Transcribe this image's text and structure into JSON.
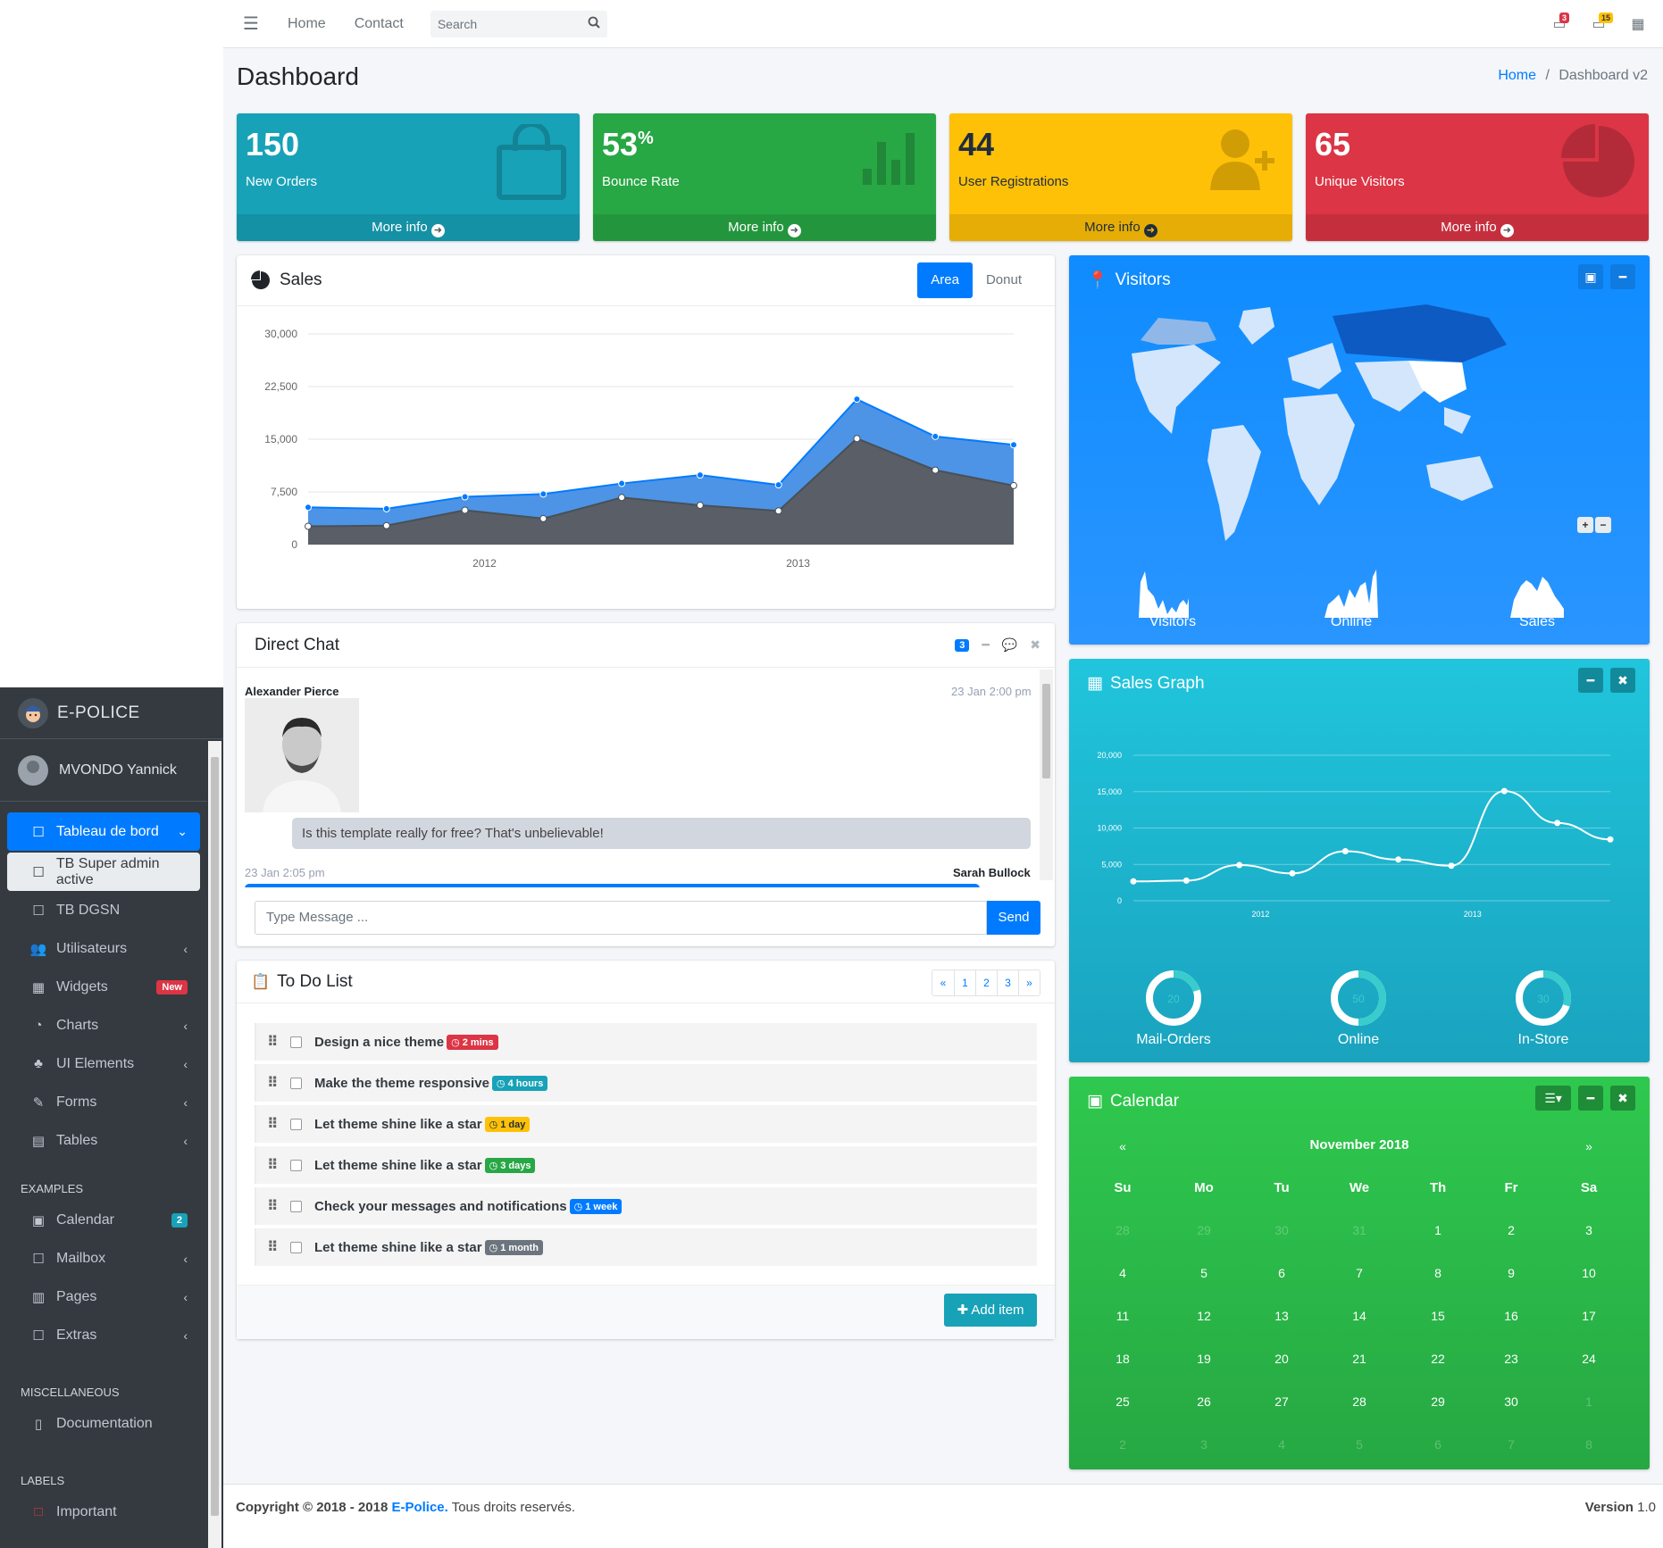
{
  "brand": {
    "name": "E-POLICE"
  },
  "user": {
    "name": "MVONDO Yannick"
  },
  "sidebar": {
    "items": [
      {
        "label": "Tableau de bord"
      },
      {
        "label": "TB Super admin active"
      },
      {
        "label": "TB DGSN"
      },
      {
        "label": "Utilisateurs"
      },
      {
        "label": "Widgets",
        "badge": "New"
      },
      {
        "label": "Charts"
      },
      {
        "label": "UI Elements"
      },
      {
        "label": "Forms"
      },
      {
        "label": "Tables"
      }
    ],
    "examples_header": "EXAMPLES",
    "examples": [
      {
        "label": "Calendar",
        "badge": "2"
      },
      {
        "label": "Mailbox"
      },
      {
        "label": "Pages"
      },
      {
        "label": "Extras"
      }
    ],
    "misc_header": "MISCELLANEOUS",
    "misc": [
      {
        "label": "Documentation"
      }
    ],
    "labels_header": "LABELS",
    "labels": [
      {
        "label": "Important"
      }
    ]
  },
  "topbar": {
    "home": "Home",
    "contact": "Contact",
    "search_placeholder": "Search",
    "messages_count": "3",
    "notifications_count": "15"
  },
  "page": {
    "title": "Dashboard",
    "breadcrumb_home": "Home",
    "breadcrumb_current": "Dashboard v2"
  },
  "small_boxes": [
    {
      "value": "150",
      "suffix": "",
      "label": "New Orders",
      "more": "More info",
      "color": "#17a2b8"
    },
    {
      "value": "53",
      "suffix": "%",
      "label": "Bounce Rate",
      "more": "More info",
      "color": "#28a745"
    },
    {
      "value": "44",
      "suffix": "",
      "label": "User Registrations",
      "more": "More info",
      "color": "#ffc107"
    },
    {
      "value": "65",
      "suffix": "",
      "label": "Unique Visitors",
      "more": "More info",
      "color": "#dc3545"
    }
  ],
  "sales": {
    "title": "Sales",
    "tab_area": "Area",
    "tab_donut": "Donut"
  },
  "chart_data": [
    {
      "type": "area",
      "x_ticks": [
        "2012",
        "2013"
      ],
      "y_ticks": [
        "0",
        "7,500",
        "15,000",
        "22,500",
        "30,000"
      ],
      "ylim": [
        0,
        30000
      ],
      "series": [
        {
          "values": [
            5300,
            5100,
            6800,
            7200,
            8700,
            9900,
            8500,
            20700,
            15400,
            14200
          ]
        },
        {
          "values": [
            2600,
            2700,
            4900,
            3700,
            6700,
            5600,
            4800,
            15100,
            10600,
            8400
          ]
        }
      ]
    },
    {
      "type": "line",
      "x_ticks": [
        "2012",
        "2013"
      ],
      "y_ticks": [
        "0",
        "5,000",
        "10,000",
        "15,000",
        "20,000"
      ],
      "ylim": [
        0,
        20000
      ],
      "series": [
        {
          "values": [
            2666,
            2778,
            4912,
            3767,
            6810,
            5670,
            4820,
            15073,
            10687,
            8432
          ]
        }
      ]
    }
  ],
  "chat": {
    "title": "Direct Chat",
    "badge": "3",
    "msg1_name": "Alexander Pierce",
    "msg1_time": "23 Jan 2:00 pm",
    "msg1_text": "Is this template really for free? That's unbelievable!",
    "msg2_name": "Sarah Bullock",
    "msg2_time": "23 Jan 2:05 pm",
    "input_placeholder": "Type Message ...",
    "send": "Send"
  },
  "todo": {
    "title": "To Do List",
    "pages": [
      "«",
      "1",
      "2",
      "3",
      "»"
    ],
    "items": [
      {
        "text": "Design a nice theme",
        "badge": "2 mins",
        "color": "#dc3545"
      },
      {
        "text": "Make the theme responsive",
        "badge": "4 hours",
        "color": "#17a2b8"
      },
      {
        "text": "Let theme shine like a star",
        "badge": "1 day",
        "color": "#ffc107"
      },
      {
        "text": "Let theme shine like a star",
        "badge": "3 days",
        "color": "#28a745"
      },
      {
        "text": "Check your messages and notifications",
        "badge": "1 week",
        "color": "#007bff"
      },
      {
        "text": "Let theme shine like a star",
        "badge": "1 month",
        "color": "#6c757d"
      }
    ],
    "add": "Add item"
  },
  "visitors": {
    "title": "Visitors",
    "spark": [
      "Visitors",
      "Online",
      "Sales"
    ]
  },
  "sales_graph": {
    "title": "Sales Graph",
    "knobs": [
      {
        "label": "Mail-Orders",
        "value": "20"
      },
      {
        "label": "Online",
        "value": "50"
      },
      {
        "label": "In-Store",
        "value": "30"
      }
    ]
  },
  "calendar": {
    "title": "Calendar",
    "month": "November 2018",
    "prev": "«",
    "next": "»",
    "days": [
      "Su",
      "Mo",
      "Tu",
      "We",
      "Th",
      "Fr",
      "Sa"
    ],
    "weeks": [
      [
        "28",
        "29",
        "30",
        "31",
        "1",
        "2",
        "3"
      ],
      [
        "4",
        "5",
        "6",
        "7",
        "8",
        "9",
        "10"
      ],
      [
        "11",
        "12",
        "13",
        "14",
        "15",
        "16",
        "17"
      ],
      [
        "18",
        "19",
        "20",
        "21",
        "22",
        "23",
        "24"
      ],
      [
        "25",
        "26",
        "27",
        "28",
        "29",
        "30",
        "1"
      ],
      [
        "2",
        "3",
        "4",
        "5",
        "6",
        "7",
        "8"
      ]
    ]
  },
  "footer": {
    "copy": "Copyright © 2018 - 2018",
    "brand": "E-Police.",
    "rights": "Tous droits reservés.",
    "version_label": "Version",
    "version": "1.0"
  }
}
